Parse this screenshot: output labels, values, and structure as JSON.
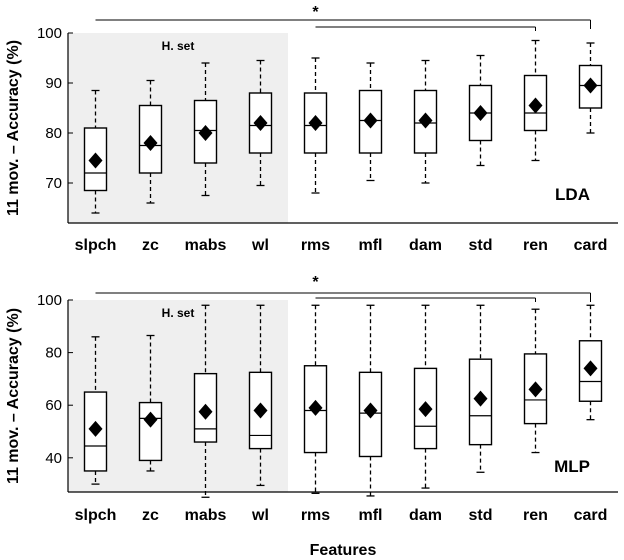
{
  "chart_data": [
    {
      "type": "box",
      "panel_label": "LDA",
      "ylabel": "11 mov. – Accuracy (%)",
      "xlabel": "",
      "ylim": [
        62,
        100
      ],
      "yticks": [
        70,
        80,
        90,
        100
      ],
      "categories": [
        "slpch",
        "zc",
        "mabs",
        "wl",
        "rms",
        "mfl",
        "dam",
        "std",
        "ren",
        "card"
      ],
      "highlight": {
        "label": "H. set",
        "from_category": "slpch",
        "to_category": "wl"
      },
      "significance": {
        "marker": "*",
        "from": "slpch",
        "to": "card",
        "through": "rms",
        "upto": "ren"
      },
      "boxes": [
        {
          "min": 64,
          "q1": 68.5,
          "median": 72,
          "q3": 81,
          "max": 88.5,
          "mean": 74.5
        },
        {
          "min": 66,
          "q1": 72,
          "median": 77.5,
          "q3": 85.5,
          "max": 90.5,
          "mean": 78
        },
        {
          "min": 67.5,
          "q1": 74,
          "median": 80.5,
          "q3": 86.5,
          "max": 94,
          "mean": 80
        },
        {
          "min": 69.5,
          "q1": 76,
          "median": 81.5,
          "q3": 88,
          "max": 94.5,
          "mean": 82
        },
        {
          "min": 68,
          "q1": 76,
          "median": 81.5,
          "q3": 88,
          "max": 95,
          "mean": 82
        },
        {
          "min": 70.5,
          "q1": 76,
          "median": 82.5,
          "q3": 88.5,
          "max": 94,
          "mean": 82.5
        },
        {
          "min": 70,
          "q1": 76,
          "median": 82,
          "q3": 88.5,
          "max": 94.5,
          "mean": 82.5
        },
        {
          "min": 73.5,
          "q1": 78.5,
          "median": 84,
          "q3": 89.5,
          "max": 95.5,
          "mean": 84
        },
        {
          "min": 74.5,
          "q1": 80.5,
          "median": 84,
          "q3": 91.5,
          "max": 98.5,
          "mean": 85.5
        },
        {
          "min": 80,
          "q1": 85,
          "median": 89.5,
          "q3": 93.5,
          "max": 98,
          "mean": 89.5
        }
      ]
    },
    {
      "type": "box",
      "panel_label": "MLP",
      "ylabel": "11 mov. – Accuracy (%)",
      "xlabel": "Features",
      "ylim": [
        27,
        100
      ],
      "yticks": [
        40,
        60,
        80,
        100
      ],
      "categories": [
        "slpch",
        "zc",
        "mabs",
        "wl",
        "rms",
        "mfl",
        "dam",
        "std",
        "ren",
        "card"
      ],
      "highlight": {
        "label": "H. set",
        "from_category": "slpch",
        "to_category": "wl"
      },
      "significance": {
        "marker": "*",
        "from": "slpch",
        "to": "card",
        "through": "rms",
        "upto": "ren"
      },
      "boxes": [
        {
          "min": 30,
          "q1": 35,
          "median": 44.5,
          "q3": 65,
          "max": 86,
          "mean": 51
        },
        {
          "min": 35,
          "q1": 39,
          "median": 55,
          "q3": 61,
          "max": 86.5,
          "mean": 54.5
        },
        {
          "min": 25,
          "q1": 46,
          "median": 51,
          "q3": 72,
          "max": 98,
          "mean": 57.5
        },
        {
          "min": 29.5,
          "q1": 43.5,
          "median": 48.5,
          "q3": 72.5,
          "max": 98,
          "mean": 58
        },
        {
          "min": 26.5,
          "q1": 42,
          "median": 58,
          "q3": 75,
          "max": 98,
          "mean": 59
        },
        {
          "min": 25.5,
          "q1": 40.5,
          "median": 57,
          "q3": 72.5,
          "max": 98,
          "mean": 58
        },
        {
          "min": 28.5,
          "q1": 43.5,
          "median": 52,
          "q3": 74,
          "max": 98,
          "mean": 58.5
        },
        {
          "min": 34.5,
          "q1": 45,
          "median": 56,
          "q3": 77.5,
          "max": 98,
          "mean": 62.5
        },
        {
          "min": 42,
          "q1": 53,
          "median": 62,
          "q3": 79.5,
          "max": 96.5,
          "mean": 66
        },
        {
          "min": 54.5,
          "q1": 61.5,
          "median": 69,
          "q3": 84.5,
          "max": 98,
          "mean": 74
        }
      ]
    }
  ]
}
